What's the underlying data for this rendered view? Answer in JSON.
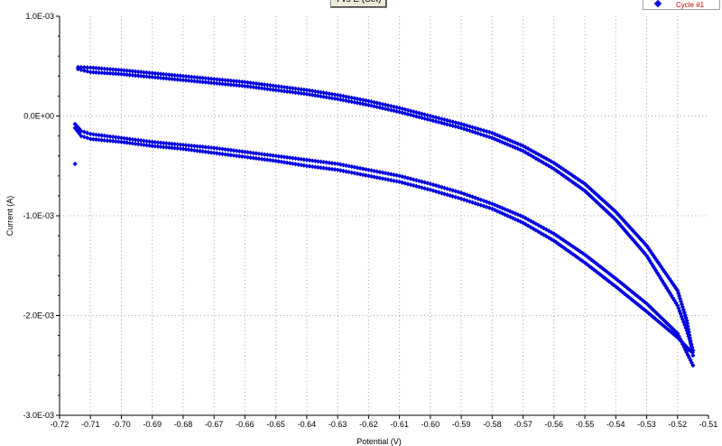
{
  "chart_data": {
    "type": "scatter",
    "title": "I vs E (Set)",
    "xlabel": "Potential (V)",
    "ylabel": "Current (A)",
    "xlim": [
      -0.72,
      -0.51
    ],
    "ylim": [
      -0.003,
      0.001
    ],
    "x_ticks": [
      "-0.72",
      "-0.71",
      "-0.70",
      "-0.69",
      "-0.68",
      "-0.67",
      "-0.66",
      "-0.65",
      "-0.64",
      "-0.63",
      "-0.62",
      "-0.61",
      "-0.60",
      "-0.59",
      "-0.58",
      "-0.57",
      "-0.56",
      "-0.55",
      "-0.54",
      "-0.53",
      "-0.52",
      "-0.51"
    ],
    "y_ticks": [
      "1.0E-03",
      "0.0E+00",
      "-1.0E-03",
      "-2.0E-03",
      "-3.0E-03"
    ],
    "grid": true,
    "legend_position": "top-right",
    "marker_color": "#0000e0",
    "series": [
      {
        "name": "Cycle #1",
        "sweeps": [
          {
            "x": [
              -0.714,
              -0.71,
              -0.7,
              -0.69,
              -0.68,
              -0.67,
              -0.66,
              -0.65,
              -0.64,
              -0.63,
              -0.62,
              -0.61,
              -0.6,
              -0.59,
              -0.58,
              -0.57,
              -0.56,
              -0.55,
              -0.54,
              -0.53,
              -0.52,
              -0.517,
              -0.515
            ],
            "y": [
              0.00049,
              0.000485,
              0.00046,
              0.00043,
              0.0004,
              0.00037,
              0.00034,
              0.0003,
              0.00026,
              0.00021,
              0.00015,
              8e-05,
              0.0,
              -8e-05,
              -0.00017,
              -0.0003,
              -0.00047,
              -0.00068,
              -0.00096,
              -0.0013,
              -0.00175,
              -0.00205,
              -0.0024
            ]
          },
          {
            "x": [
              -0.714,
              -0.71,
              -0.7,
              -0.69,
              -0.68,
              -0.67,
              -0.66,
              -0.65,
              -0.64,
              -0.63,
              -0.62,
              -0.61,
              -0.6,
              -0.59,
              -0.58,
              -0.57,
              -0.56,
              -0.55,
              -0.54,
              -0.53,
              -0.52,
              -0.517,
              -0.515
            ],
            "y": [
              0.00047,
              0.00044,
              0.00042,
              0.00039,
              0.00036,
              0.00033,
              0.0003,
              0.00026,
              0.00022,
              0.00017,
              0.00011,
              4e-05,
              -4e-05,
              -0.00012,
              -0.00022,
              -0.00035,
              -0.00053,
              -0.00075,
              -0.00104,
              -0.0014,
              -0.0019,
              -0.00215,
              -0.00235
            ]
          },
          {
            "x": [
              -0.715,
              -0.713,
              -0.71,
              -0.7,
              -0.69,
              -0.68,
              -0.67,
              -0.66,
              -0.65,
              -0.64,
              -0.63,
              -0.62,
              -0.61,
              -0.6,
              -0.59,
              -0.58,
              -0.57,
              -0.56,
              -0.55,
              -0.54,
              -0.53,
              -0.52,
              -0.516
            ],
            "y": [
              -0.00012,
              -0.0002,
              -0.00023,
              -0.00026,
              -0.0003,
              -0.00033,
              -0.00037,
              -0.00041,
              -0.00045,
              -0.0005,
              -0.00054,
              -0.0006,
              -0.00066,
              -0.00074,
              -0.00083,
              -0.00093,
              -0.00107,
              -0.00125,
              -0.00147,
              -0.00171,
              -0.00196,
              -0.00222,
              -0.00235
            ]
          },
          {
            "x": [
              -0.715,
              -0.713,
              -0.71,
              -0.7,
              -0.69,
              -0.68,
              -0.67,
              -0.66,
              -0.65,
              -0.64,
              -0.63,
              -0.62,
              -0.61,
              -0.6,
              -0.59,
              -0.58,
              -0.57,
              -0.56,
              -0.55,
              -0.54,
              -0.53,
              -0.52,
              -0.515
            ],
            "y": [
              -8e-05,
              -0.00015,
              -0.00018,
              -0.00022,
              -0.00026,
              -0.00029,
              -0.00032,
              -0.00036,
              -0.0004,
              -0.00044,
              -0.00048,
              -0.00054,
              -0.0006,
              -0.00068,
              -0.00077,
              -0.00088,
              -0.00101,
              -0.00118,
              -0.00139,
              -0.00163,
              -0.00188,
              -0.00218,
              -0.0025
            ]
          }
        ],
        "extra_points": {
          "x": [
            -0.715
          ],
          "y": [
            -0.00048
          ]
        }
      }
    ]
  }
}
